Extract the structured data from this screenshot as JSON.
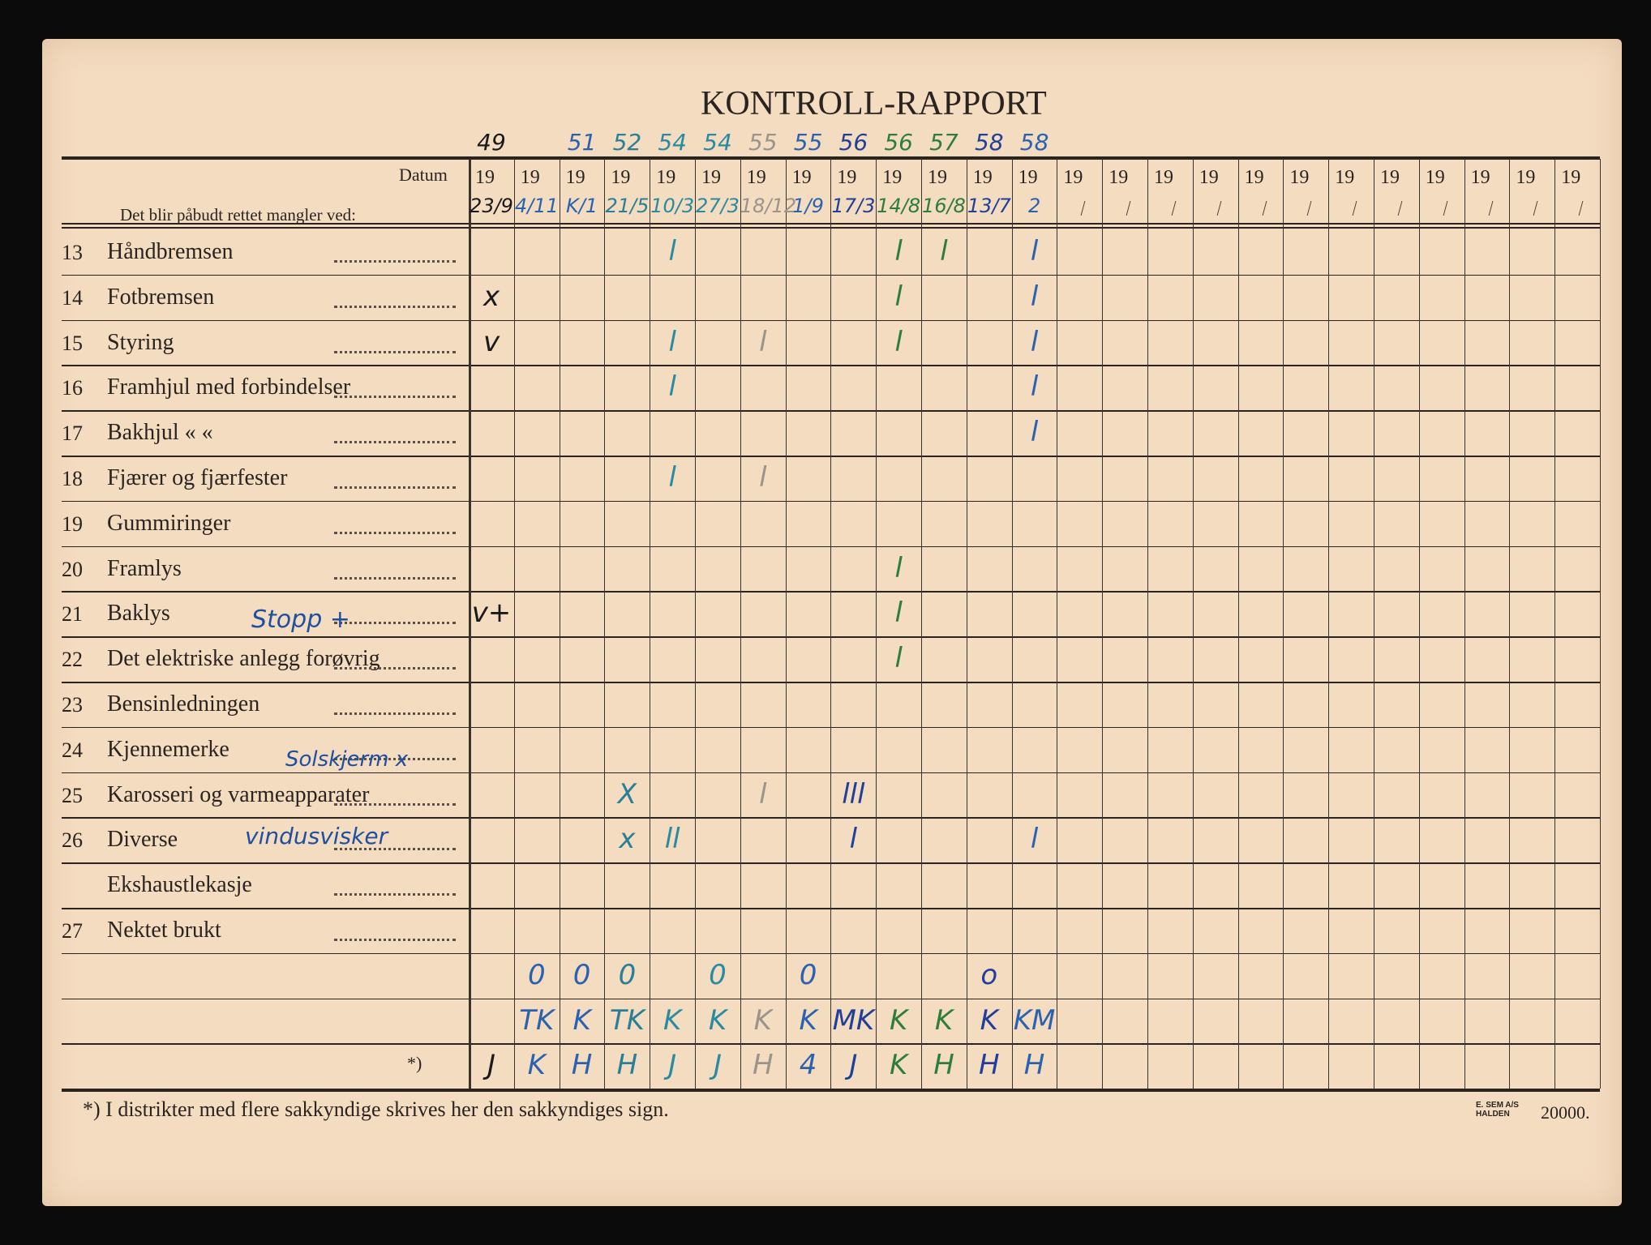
{
  "title": "KONTROLL-RAPPORT",
  "header": {
    "datum_label": "Datum",
    "subtitle": "Det blir påbudt rettet mangler ved:",
    "year_prefix": "19",
    "column_count": 25
  },
  "rows": [
    {
      "number": "13",
      "label": "Håndbremsen"
    },
    {
      "number": "14",
      "label": "Fotbremsen"
    },
    {
      "number": "15",
      "label": "Styring"
    },
    {
      "number": "16",
      "label": "Framhjul med forbindelser"
    },
    {
      "number": "17",
      "label": "Bakhjul       «       «"
    },
    {
      "number": "18",
      "label": "Fjærer og fjærfester"
    },
    {
      "number": "19",
      "label": "Gummiringer"
    },
    {
      "number": "20",
      "label": "Framlys"
    },
    {
      "number": "21",
      "label": "Baklys"
    },
    {
      "number": "22",
      "label": "Det elektriske anlegg forøvrig"
    },
    {
      "number": "23",
      "label": "Bensinledningen"
    },
    {
      "number": "24",
      "label": "Kjennemerke"
    },
    {
      "number": "25",
      "label": "Karosseri og varmeapparater"
    },
    {
      "number": "26",
      "label": "Diverse"
    },
    {
      "number": "",
      "label": "Ekshaustlekasje"
    },
    {
      "number": "27",
      "label": "Nektet brukt"
    },
    {
      "number": "",
      "label": ""
    },
    {
      "number": "",
      "label": ""
    },
    {
      "number": "",
      "label": "*)"
    }
  ],
  "handwritten_dates": [
    {
      "col": 0,
      "year": "49",
      "day": "23/9",
      "color": "#1a1a1a"
    },
    {
      "col": 1,
      "year": "",
      "day": "4/11",
      "color": "#2b62b0"
    },
    {
      "col": 2,
      "year": "51",
      "day": "K/1",
      "color": "#2b62b0"
    },
    {
      "col": 3,
      "year": "52",
      "day": "21/5",
      "color": "#2a7f98"
    },
    {
      "col": 4,
      "year": "54",
      "day": "10/3",
      "color": "#2a8aa0"
    },
    {
      "col": 5,
      "year": "54",
      "day": "27/3",
      "color": "#2a8aa0"
    },
    {
      "col": 6,
      "year": "55",
      "day": "18/12",
      "color": "#9a948c"
    },
    {
      "col": 7,
      "year": "55",
      "day": "1/9",
      "color": "#2b62b0"
    },
    {
      "col": 8,
      "year": "56",
      "day": "17/3",
      "color": "#1f3f9a"
    },
    {
      "col": 9,
      "year": "56",
      "day": "14/8",
      "color": "#2e7d3a"
    },
    {
      "col": 10,
      "year": "57",
      "day": "16/8",
      "color": "#2e7d3a"
    },
    {
      "col": 11,
      "year": "58",
      "day": "13/7",
      "color": "#1f3f9a"
    },
    {
      "col": 12,
      "year": "58",
      "day": "2",
      "color": "#2b62b0"
    }
  ],
  "handwritten_marks": [
    {
      "row": 0,
      "col": 4,
      "text": "l"
    },
    {
      "row": 0,
      "col": 9,
      "text": "l"
    },
    {
      "row": 0,
      "col": 10,
      "text": "l"
    },
    {
      "row": 0,
      "col": 12,
      "text": "l"
    },
    {
      "row": 1,
      "col": 0,
      "text": "x"
    },
    {
      "row": 1,
      "col": 9,
      "text": "l"
    },
    {
      "row": 1,
      "col": 12,
      "text": "l"
    },
    {
      "row": 2,
      "col": 0,
      "text": "v"
    },
    {
      "row": 2,
      "col": 4,
      "text": "l"
    },
    {
      "row": 2,
      "col": 6,
      "text": "l"
    },
    {
      "row": 2,
      "col": 9,
      "text": "l"
    },
    {
      "row": 2,
      "col": 12,
      "text": "l"
    },
    {
      "row": 3,
      "col": 4,
      "text": "l"
    },
    {
      "row": 3,
      "col": 12,
      "text": "l"
    },
    {
      "row": 4,
      "col": 12,
      "text": "l"
    },
    {
      "row": 5,
      "col": 4,
      "text": "l"
    },
    {
      "row": 5,
      "col": 6,
      "text": "l"
    },
    {
      "row": 7,
      "col": 9,
      "text": "l"
    },
    {
      "row": 8,
      "col": 0,
      "text": "v+"
    },
    {
      "row": 8,
      "col": 9,
      "text": "l"
    },
    {
      "row": 9,
      "col": 9,
      "text": "l"
    },
    {
      "row": 12,
      "col": 3,
      "text": "X"
    },
    {
      "row": 12,
      "col": 6,
      "text": "l"
    },
    {
      "row": 12,
      "col": 8,
      "text": "lll"
    },
    {
      "row": 13,
      "col": 3,
      "text": "x"
    },
    {
      "row": 13,
      "col": 4,
      "text": "ll"
    },
    {
      "row": 13,
      "col": 8,
      "text": "l"
    },
    {
      "row": 13,
      "col": 12,
      "text": "l"
    },
    {
      "row": 16,
      "col": 1,
      "text": "0"
    },
    {
      "row": 16,
      "col": 2,
      "text": "0"
    },
    {
      "row": 16,
      "col": 3,
      "text": "0"
    },
    {
      "row": 16,
      "col": 5,
      "text": "0"
    },
    {
      "row": 16,
      "col": 7,
      "text": "0"
    },
    {
      "row": 16,
      "col": 11,
      "text": "o"
    },
    {
      "row": 17,
      "col": 1,
      "text": "TK"
    },
    {
      "row": 17,
      "col": 2,
      "text": "K"
    },
    {
      "row": 17,
      "col": 3,
      "text": "TK"
    },
    {
      "row": 17,
      "col": 4,
      "text": "K"
    },
    {
      "row": 17,
      "col": 5,
      "text": "K"
    },
    {
      "row": 17,
      "col": 6,
      "text": "K"
    },
    {
      "row": 17,
      "col": 7,
      "text": "K"
    },
    {
      "row": 17,
      "col": 8,
      "text": "MK"
    },
    {
      "row": 17,
      "col": 9,
      "text": "K"
    },
    {
      "row": 17,
      "col": 10,
      "text": "K"
    },
    {
      "row": 17,
      "col": 11,
      "text": "K"
    },
    {
      "row": 17,
      "col": 12,
      "text": "KM"
    },
    {
      "row": 18,
      "col": 0,
      "text": "J"
    },
    {
      "row": 18,
      "col": 1,
      "text": "K"
    },
    {
      "row": 18,
      "col": 2,
      "text": "H"
    },
    {
      "row": 18,
      "col": 3,
      "text": "H"
    },
    {
      "row": 18,
      "col": 4,
      "text": "J"
    },
    {
      "row": 18,
      "col": 5,
      "text": "J"
    },
    {
      "row": 18,
      "col": 6,
      "text": "H"
    },
    {
      "row": 18,
      "col": 7,
      "text": "4"
    },
    {
      "row": 18,
      "col": 8,
      "text": "J"
    },
    {
      "row": 18,
      "col": 9,
      "text": "K"
    },
    {
      "row": 18,
      "col": 10,
      "text": "H"
    },
    {
      "row": 18,
      "col": 11,
      "text": "H"
    },
    {
      "row": 18,
      "col": 12,
      "text": "H"
    }
  ],
  "annotations": {
    "baklys": "Stopp +",
    "karosseri": "Solskjerm x",
    "diverse": "vindusvisker"
  },
  "footer": {
    "note": "*)   I distrikter med flere sakkyndige skrives her den sakkyndiges sign.",
    "printer_line1": "E. SEM A/S",
    "printer_line2": "HALDEN",
    "print_run": "20000."
  }
}
